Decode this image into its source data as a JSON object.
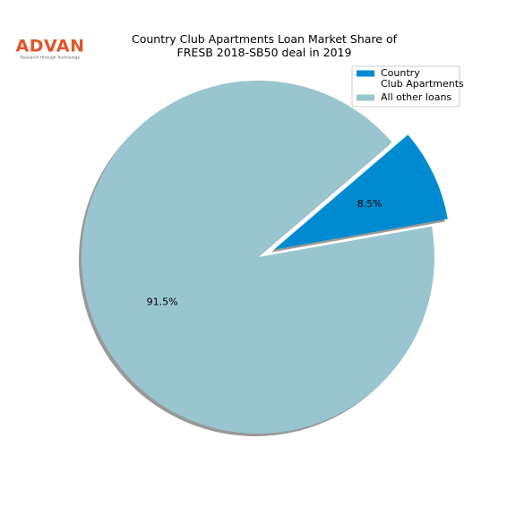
{
  "logo": {
    "name": "ADVAN",
    "tagline": "Research through Technology"
  },
  "chart_data": {
    "type": "pie",
    "title": "Country Club Apartments Loan Market Share of\nFRESB 2018-SB50 deal in 2019",
    "categories": [
      "Country\nClub Apartments",
      "All other loans"
    ],
    "values": [
      8.5,
      91.5
    ],
    "value_labels": [
      "8.5%",
      "91.5%"
    ],
    "colors": [
      "#008bd0",
      "#99c5ce"
    ],
    "legend": "upper right"
  }
}
